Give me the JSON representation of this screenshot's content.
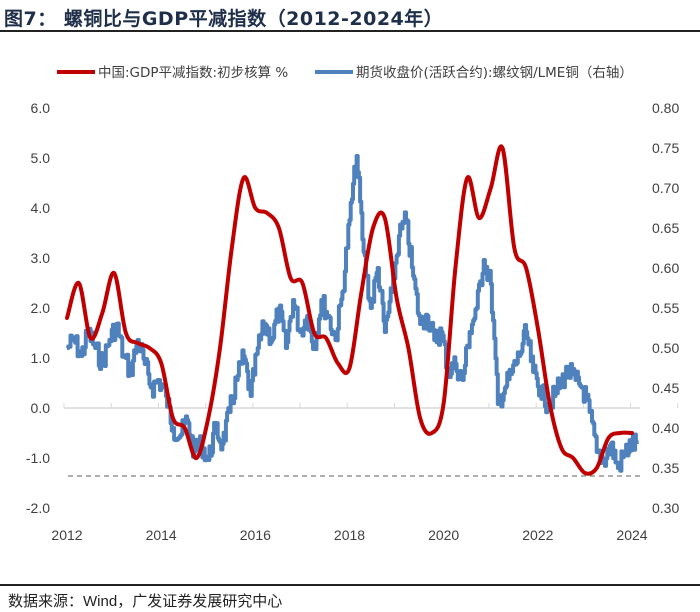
{
  "header": {
    "title": "图7： 螺铜比与GDP平减指数（2012-2024年）"
  },
  "footer": {
    "source_prefix": "数据来源：",
    "source_body": "Wind，广发证券发展研究中心"
  },
  "chart_data": {
    "type": "line",
    "title": "图7： 螺铜比与GDP平减指数（2012-2024年）",
    "xlabel": "",
    "ylabel": "",
    "y2label": "",
    "xlim": [
      2012,
      2024.4
    ],
    "ylim": [
      -2.0,
      6.0
    ],
    "y2lim": [
      0.3,
      0.8
    ],
    "x_ticks": [
      "2012",
      "2014",
      "2016",
      "2018",
      "2020",
      "2022",
      "2024"
    ],
    "x_tick_values": [
      2012,
      2014,
      2016,
      2018,
      2020,
      2022,
      2024
    ],
    "y_ticks": [
      "6.0",
      "5.0",
      "4.0",
      "3.0",
      "2.0",
      "1.0",
      "0.0",
      "-1.0",
      "-2.0"
    ],
    "y_tick_values": [
      6,
      5,
      4,
      3,
      2,
      1,
      0,
      -1,
      -2
    ],
    "y2_ticks": [
      "0.80",
      "0.75",
      "0.70",
      "0.65",
      "0.60",
      "0.55",
      "0.50",
      "0.45",
      "0.40",
      "0.35",
      "0.30"
    ],
    "y2_tick_values": [
      0.8,
      0.75,
      0.7,
      0.65,
      0.6,
      0.55,
      0.5,
      0.45,
      0.4,
      0.35,
      0.3
    ],
    "grid": false,
    "legend_position": "top",
    "reference_line": {
      "axis": "y2",
      "value": 0.34,
      "style": "dashed",
      "color": "#7f7f7f"
    },
    "series": [
      {
        "name": "中国:GDP平减指数:初步核算 %",
        "axis": "left",
        "color": "#c00000",
        "x": [
          2012.0,
          2012.25,
          2012.5,
          2012.75,
          2013.0,
          2013.25,
          2013.5,
          2013.75,
          2014.0,
          2014.25,
          2014.5,
          2014.75,
          2015.0,
          2015.25,
          2015.5,
          2015.75,
          2016.0,
          2016.25,
          2016.5,
          2016.75,
          2017.0,
          2017.25,
          2017.5,
          2017.75,
          2018.0,
          2018.25,
          2018.5,
          2018.75,
          2019.0,
          2019.25,
          2019.5,
          2019.75,
          2020.0,
          2020.25,
          2020.5,
          2020.75,
          2021.0,
          2021.25,
          2021.5,
          2021.75,
          2022.0,
          2022.25,
          2022.5,
          2022.75,
          2023.0,
          2023.25,
          2023.5,
          2023.75,
          2024.0
        ],
        "y": [
          1.8,
          2.5,
          1.4,
          1.9,
          2.7,
          1.5,
          1.3,
          1.2,
          0.9,
          -0.2,
          -0.4,
          -1.0,
          -0.2,
          1.2,
          3.2,
          4.6,
          4.0,
          3.9,
          3.6,
          2.6,
          2.5,
          1.5,
          1.4,
          0.9,
          0.8,
          2.3,
          3.6,
          3.8,
          2.2,
          1.2,
          -0.2,
          -0.5,
          0.1,
          2.8,
          4.6,
          3.8,
          4.4,
          5.2,
          3.2,
          2.8,
          1.6,
          0.1,
          -0.8,
          -1.0,
          -1.3,
          -1.2,
          -0.6,
          -0.5,
          -0.5
        ]
      },
      {
        "name": "期货收盘价(活跃合约):螺纹钢/LME铜（右轴）",
        "axis": "right",
        "color": "#4f81bd",
        "x": [
          2012.0,
          2012.15,
          2012.3,
          2012.45,
          2012.6,
          2012.75,
          2012.9,
          2013.05,
          2013.2,
          2013.35,
          2013.5,
          2013.65,
          2013.8,
          2013.95,
          2014.1,
          2014.25,
          2014.4,
          2014.55,
          2014.7,
          2014.85,
          2015.0,
          2015.15,
          2015.3,
          2015.45,
          2015.6,
          2015.75,
          2015.9,
          2016.05,
          2016.2,
          2016.35,
          2016.5,
          2016.65,
          2016.8,
          2016.95,
          2017.1,
          2017.25,
          2017.4,
          2017.55,
          2017.7,
          2017.85,
          2018.0,
          2018.15,
          2018.3,
          2018.45,
          2018.6,
          2018.75,
          2018.9,
          2019.05,
          2019.2,
          2019.35,
          2019.5,
          2019.65,
          2019.8,
          2019.95,
          2020.1,
          2020.25,
          2020.4,
          2020.55,
          2020.7,
          2020.85,
          2021.0,
          2021.15,
          2021.3,
          2021.45,
          2021.6,
          2021.75,
          2021.9,
          2022.05,
          2022.2,
          2022.35,
          2022.5,
          2022.65,
          2022.8,
          2022.95,
          2023.1,
          2023.25,
          2023.4,
          2023.55,
          2023.7,
          2023.85,
          2024.0,
          2024.1
        ],
        "y": [
          0.5,
          0.51,
          0.49,
          0.52,
          0.5,
          0.48,
          0.51,
          0.53,
          0.49,
          0.47,
          0.51,
          0.48,
          0.45,
          0.46,
          0.44,
          0.4,
          0.39,
          0.41,
          0.37,
          0.38,
          0.36,
          0.4,
          0.38,
          0.42,
          0.46,
          0.49,
          0.44,
          0.5,
          0.53,
          0.51,
          0.55,
          0.5,
          0.56,
          0.52,
          0.54,
          0.5,
          0.56,
          0.54,
          0.51,
          0.57,
          0.66,
          0.74,
          0.62,
          0.55,
          0.6,
          0.52,
          0.57,
          0.64,
          0.66,
          0.59,
          0.53,
          0.54,
          0.51,
          0.52,
          0.47,
          0.48,
          0.46,
          0.52,
          0.55,
          0.61,
          0.58,
          0.43,
          0.45,
          0.47,
          0.49,
          0.52,
          0.47,
          0.45,
          0.43,
          0.44,
          0.46,
          0.47,
          0.46,
          0.45,
          0.42,
          0.37,
          0.36,
          0.38,
          0.35,
          0.37,
          0.38,
          0.38
        ]
      }
    ]
  }
}
